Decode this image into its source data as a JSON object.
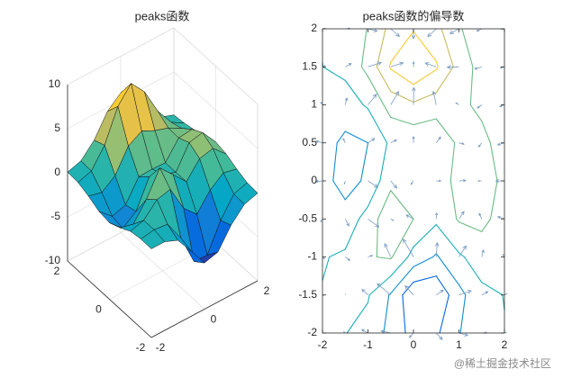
{
  "chart_data": [
    {
      "type": "surface",
      "title": "peaks函数",
      "x": [
        -2,
        -1.5,
        -1,
        -0.5,
        0,
        0.5,
        1,
        1.5,
        2
      ],
      "y": [
        -2,
        -1.5,
        -1,
        -0.5,
        0,
        0.5,
        1,
        1.5,
        2
      ],
      "z": [
        [
          0.05,
          0.05,
          -0.59,
          -2.63,
          -4.75,
          -4.34,
          -2.1,
          -0.53,
          -0.06
        ],
        [
          0.08,
          0.33,
          0.15,
          -2.19,
          -5.68,
          -5.76,
          -2.63,
          -0.44,
          0.04
        ],
        [
          -0.13,
          0.3,
          1.86,
          2.22,
          -0.72,
          -2.22,
          -0.27,
          0.88,
          0.5
        ],
        [
          -0.8,
          -1.21,
          0.8,
          3.55,
          2.0,
          0.39,
          2.2,
          2.56,
          1.12
        ],
        [
          -1.33,
          -2.77,
          -1.65,
          1.48,
          0.98,
          0.37,
          2.94,
          3.27,
          1.41
        ],
        [
          -1.12,
          -2.49,
          -2.0,
          0.39,
          0.46,
          0.38,
          2.38,
          2.56,
          1.09
        ],
        [
          -0.48,
          -0.86,
          0.23,
          2.79,
          3.69,
          2.94,
          2.43,
          1.58,
          0.58
        ],
        [
          -0.01,
          0.48,
          2.6,
          6.2,
          8.0,
          6.25,
          3.26,
          1.19,
          0.29
        ],
        [
          0.08,
          0.55,
          2.09,
          4.55,
          5.85,
          4.56,
          2.21,
          0.68,
          0.13
        ]
      ],
      "xlim": [
        -2,
        2
      ],
      "ylim": [
        -2,
        2
      ],
      "zlim": [
        -10,
        10
      ],
      "xticks": [
        -2,
        0,
        2
      ],
      "yticks": [
        -2,
        0,
        2
      ],
      "zticks": [
        -10,
        -5,
        0,
        5,
        10
      ],
      "grid": true,
      "colormap": [
        "#352a87",
        "#0363e1",
        "#1485d4",
        "#06a7c6",
        "#38b99e",
        "#92bf73",
        "#d9ba56",
        "#fcce2e",
        "#f9fb0e"
      ]
    },
    {
      "type": "contour",
      "title": "peaks函数的偏导数",
      "x": [
        -2,
        -1.5,
        -1,
        -0.5,
        0,
        0.5,
        1,
        1.5,
        2
      ],
      "y": [
        -2,
        -1.5,
        -1,
        -0.5,
        0,
        0.5,
        1,
        1.5,
        2
      ],
      "z": [
        [
          0.05,
          0.05,
          -0.59,
          -2.63,
          -4.75,
          -4.34,
          -2.1,
          -0.53,
          -0.06
        ],
        [
          0.08,
          0.33,
          0.15,
          -2.19,
          -5.68,
          -5.76,
          -2.63,
          -0.44,
          0.04
        ],
        [
          -0.13,
          0.3,
          1.86,
          2.22,
          -0.72,
          -2.22,
          -0.27,
          0.88,
          0.5
        ],
        [
          -0.8,
          -1.21,
          0.8,
          3.55,
          2.0,
          0.39,
          2.2,
          2.56,
          1.12
        ],
        [
          -1.33,
          -2.77,
          -1.65,
          1.48,
          0.98,
          0.37,
          2.94,
          3.27,
          1.41
        ],
        [
          -1.12,
          -2.49,
          -2.0,
          0.39,
          0.46,
          0.38,
          2.38,
          2.56,
          1.09
        ],
        [
          -0.48,
          -0.86,
          0.23,
          2.79,
          3.69,
          2.94,
          2.43,
          1.58,
          0.58
        ],
        [
          -0.01,
          0.48,
          2.6,
          6.2,
          8.0,
          6.25,
          3.26,
          1.19,
          0.29
        ],
        [
          0.08,
          0.55,
          2.09,
          4.55,
          5.85,
          4.56,
          2.21,
          0.68,
          0.13
        ]
      ],
      "levels": [
        -6,
        -4,
        -2,
        0,
        2,
        4,
        6,
        8
      ],
      "xlim": [
        -2,
        2
      ],
      "ylim": [
        -2,
        2
      ],
      "xticks": [
        -2,
        -1,
        0,
        1,
        2
      ],
      "yticks": [
        -2,
        -1.5,
        -1,
        -0.5,
        0,
        0.5,
        1,
        1.5,
        2
      ],
      "quiver_color": "#7a9cc0",
      "colormap": [
        "#352a87",
        "#0363e1",
        "#1485d4",
        "#06a7c6",
        "#38b99e",
        "#92bf73",
        "#d9ba56",
        "#fcce2e",
        "#f9fb0e"
      ]
    }
  ],
  "watermark": "@稀土掘金技术社区"
}
